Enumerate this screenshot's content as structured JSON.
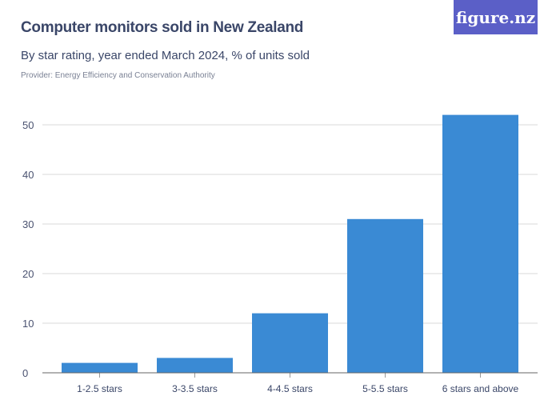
{
  "header": {
    "title": "Computer monitors sold in New Zealand",
    "subtitle": "By star rating, year ended March 2024, % of units sold",
    "provider": "Provider: Energy Efficiency and Conservation Authority",
    "logo": "figure.nz"
  },
  "chart_data": {
    "type": "bar",
    "title": "Computer monitors sold in New Zealand",
    "subtitle": "By star rating, year ended March 2024, % of units sold",
    "categories": [
      "1-2.5 stars",
      "3-3.5 stars",
      "4-4.5 stars",
      "5-5.5 stars",
      "6 stars and above"
    ],
    "values": [
      2,
      3,
      12,
      31,
      52
    ],
    "yticks": [
      0,
      10,
      20,
      30,
      40,
      50
    ],
    "ylim": [
      0,
      55
    ],
    "grid": true,
    "bar_color": "#3a8ad4"
  }
}
